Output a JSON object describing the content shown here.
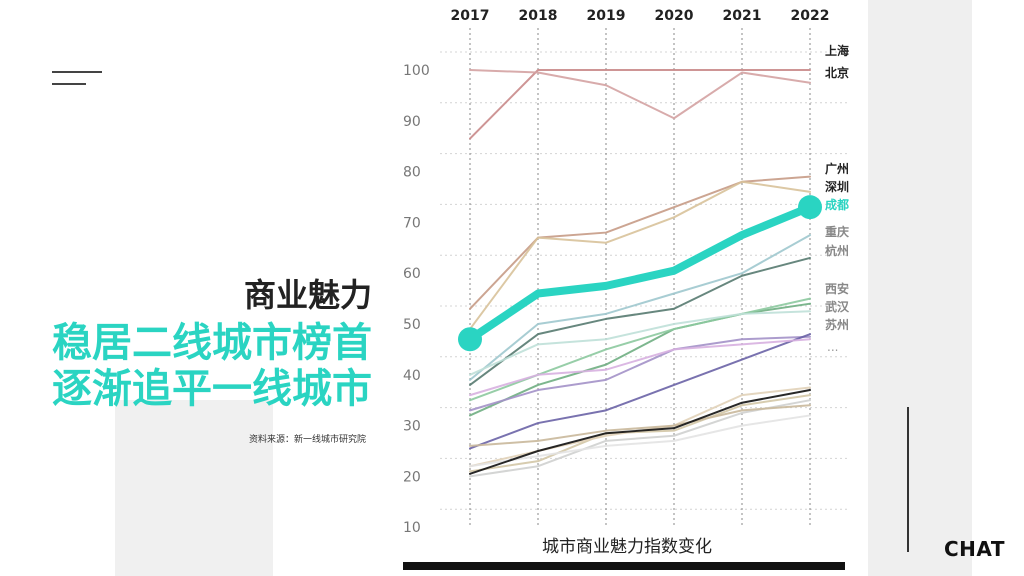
{
  "headings": {
    "main": "商业魅力",
    "sub1": "稳居二线城市榜首",
    "sub2": "逐渐追平一线城市",
    "source": "资料来源：新一线城市研究院"
  },
  "brand": "CHAT",
  "chart_data": {
    "type": "line",
    "title": "",
    "xlabel": "城市商业魅力指数变化",
    "ylabel": "",
    "x": [
      "2017",
      "2018",
      "2019",
      "2020",
      "2021",
      "2022"
    ],
    "ylim": [
      10,
      105
    ],
    "yticks": [
      10,
      20,
      30,
      40,
      50,
      60,
      70,
      80,
      90,
      100
    ],
    "grid": true,
    "legend": "right",
    "highlight": "成都",
    "highlight_color": "#2ad4c2",
    "series": [
      {
        "name": "上海",
        "values": [
          86.5,
          100,
          100,
          100,
          100,
          100
        ],
        "color": "#c98a8a"
      },
      {
        "name": "北京",
        "values": [
          100,
          99.5,
          97,
          90.5,
          99.5,
          97.5
        ],
        "color": "#d4a2a2"
      },
      {
        "name": "广州",
        "values": [
          53,
          67,
          68,
          73,
          78,
          79
        ],
        "color": "#c79b86"
      },
      {
        "name": "深圳",
        "values": [
          49,
          67,
          66,
          71,
          78,
          76
        ],
        "color": "#d8c29a"
      },
      {
        "name": "成都",
        "values": [
          47,
          56,
          57.5,
          60.5,
          67.5,
          73
        ],
        "color": "#2ad4c2"
      },
      {
        "name": "重庆",
        "values": [
          38,
          48,
          51,
          53,
          59.5,
          63
        ],
        "color": "#567a70"
      },
      {
        "name": "杭州",
        "values": [
          39,
          50,
          52,
          56,
          60,
          67.5
        ],
        "color": "#9fc8ce"
      },
      {
        "name": "西安",
        "values": [
          32,
          38,
          42,
          49,
          52,
          54
        ],
        "color": "#6fae82"
      },
      {
        "name": "武汉",
        "values": [
          35,
          40,
          45,
          49,
          52,
          55
        ],
        "color": "#8cc99e"
      },
      {
        "name": "苏州",
        "values": [
          33,
          37,
          39,
          45,
          47,
          47.5
        ],
        "color": "#a391c8"
      },
      {
        "name": "",
        "values": [
          25.5,
          30.5,
          33,
          38,
          43,
          48
        ],
        "color": "#6a63a6"
      },
      {
        "name": "",
        "values": [
          36,
          40,
          41,
          45,
          46,
          47
        ],
        "color": "#d7b0e0"
      },
      {
        "name": "",
        "values": [
          40,
          46,
          47,
          50,
          52,
          52.5
        ],
        "color": "#bfe0d8"
      },
      {
        "name": "",
        "values": [
          21,
          23,
          28.5,
          29,
          34,
          36
        ],
        "color": "#d3c6a6"
      },
      {
        "name": "",
        "values": [
          22,
          25,
          28,
          30,
          36,
          37.5
        ],
        "color": "#e1d1b8"
      },
      {
        "name": "",
        "values": [
          20,
          22,
          27,
          28,
          32.5,
          35
        ],
        "color": "#cfd0cf"
      },
      {
        "name": "",
        "values": [
          22,
          24,
          26,
          27,
          30,
          32
        ],
        "color": "#e3e3e3"
      },
      {
        "name": "",
        "values": [
          26,
          27,
          29,
          30,
          33,
          34
        ],
        "color": "#c9b89b"
      },
      {
        "name": "",
        "values": [
          20.5,
          25,
          28.5,
          29.5,
          34.5,
          37
        ],
        "color": "#111111"
      }
    ]
  }
}
